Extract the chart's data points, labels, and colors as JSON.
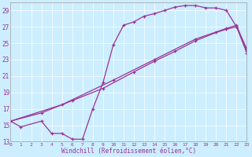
{
  "xlabel": "Windchill (Refroidissement éolien,°C)",
  "bg_color": "#cceeff",
  "line_color": "#993399",
  "xlim": [
    0,
    23
  ],
  "ylim": [
    13,
    30
  ],
  "xticks": [
    0,
    1,
    2,
    3,
    4,
    5,
    6,
    7,
    8,
    9,
    10,
    11,
    12,
    13,
    14,
    15,
    16,
    17,
    18,
    19,
    20,
    21,
    22,
    23
  ],
  "yticks": [
    13,
    15,
    17,
    19,
    21,
    23,
    25,
    27,
    29
  ],
  "curve1_x": [
    0,
    1,
    3,
    4,
    5,
    6,
    7,
    8,
    9,
    10,
    11,
    12,
    13,
    14,
    15,
    16,
    17,
    18,
    19,
    20,
    21,
    22,
    23
  ],
  "curve1_y": [
    15.5,
    14.8,
    15.5,
    14.0,
    14.0,
    13.3,
    13.3,
    17.0,
    20.2,
    24.8,
    27.2,
    27.6,
    28.3,
    28.6,
    29.0,
    29.4,
    29.6,
    29.6,
    29.3,
    29.3,
    29.0,
    27.0,
    24.3
  ],
  "curve2_x": [
    0,
    3,
    6,
    9,
    12,
    14,
    16,
    18,
    20,
    21,
    22,
    23
  ],
  "curve2_y": [
    15.5,
    16.5,
    18.0,
    19.5,
    21.5,
    22.8,
    24.0,
    25.3,
    26.3,
    26.7,
    27.0,
    23.8
  ],
  "curve3_x": [
    0,
    5,
    10,
    14,
    18,
    21,
    22,
    23
  ],
  "curve3_y": [
    15.5,
    17.5,
    20.5,
    23.0,
    25.5,
    26.8,
    27.2,
    24.0
  ]
}
